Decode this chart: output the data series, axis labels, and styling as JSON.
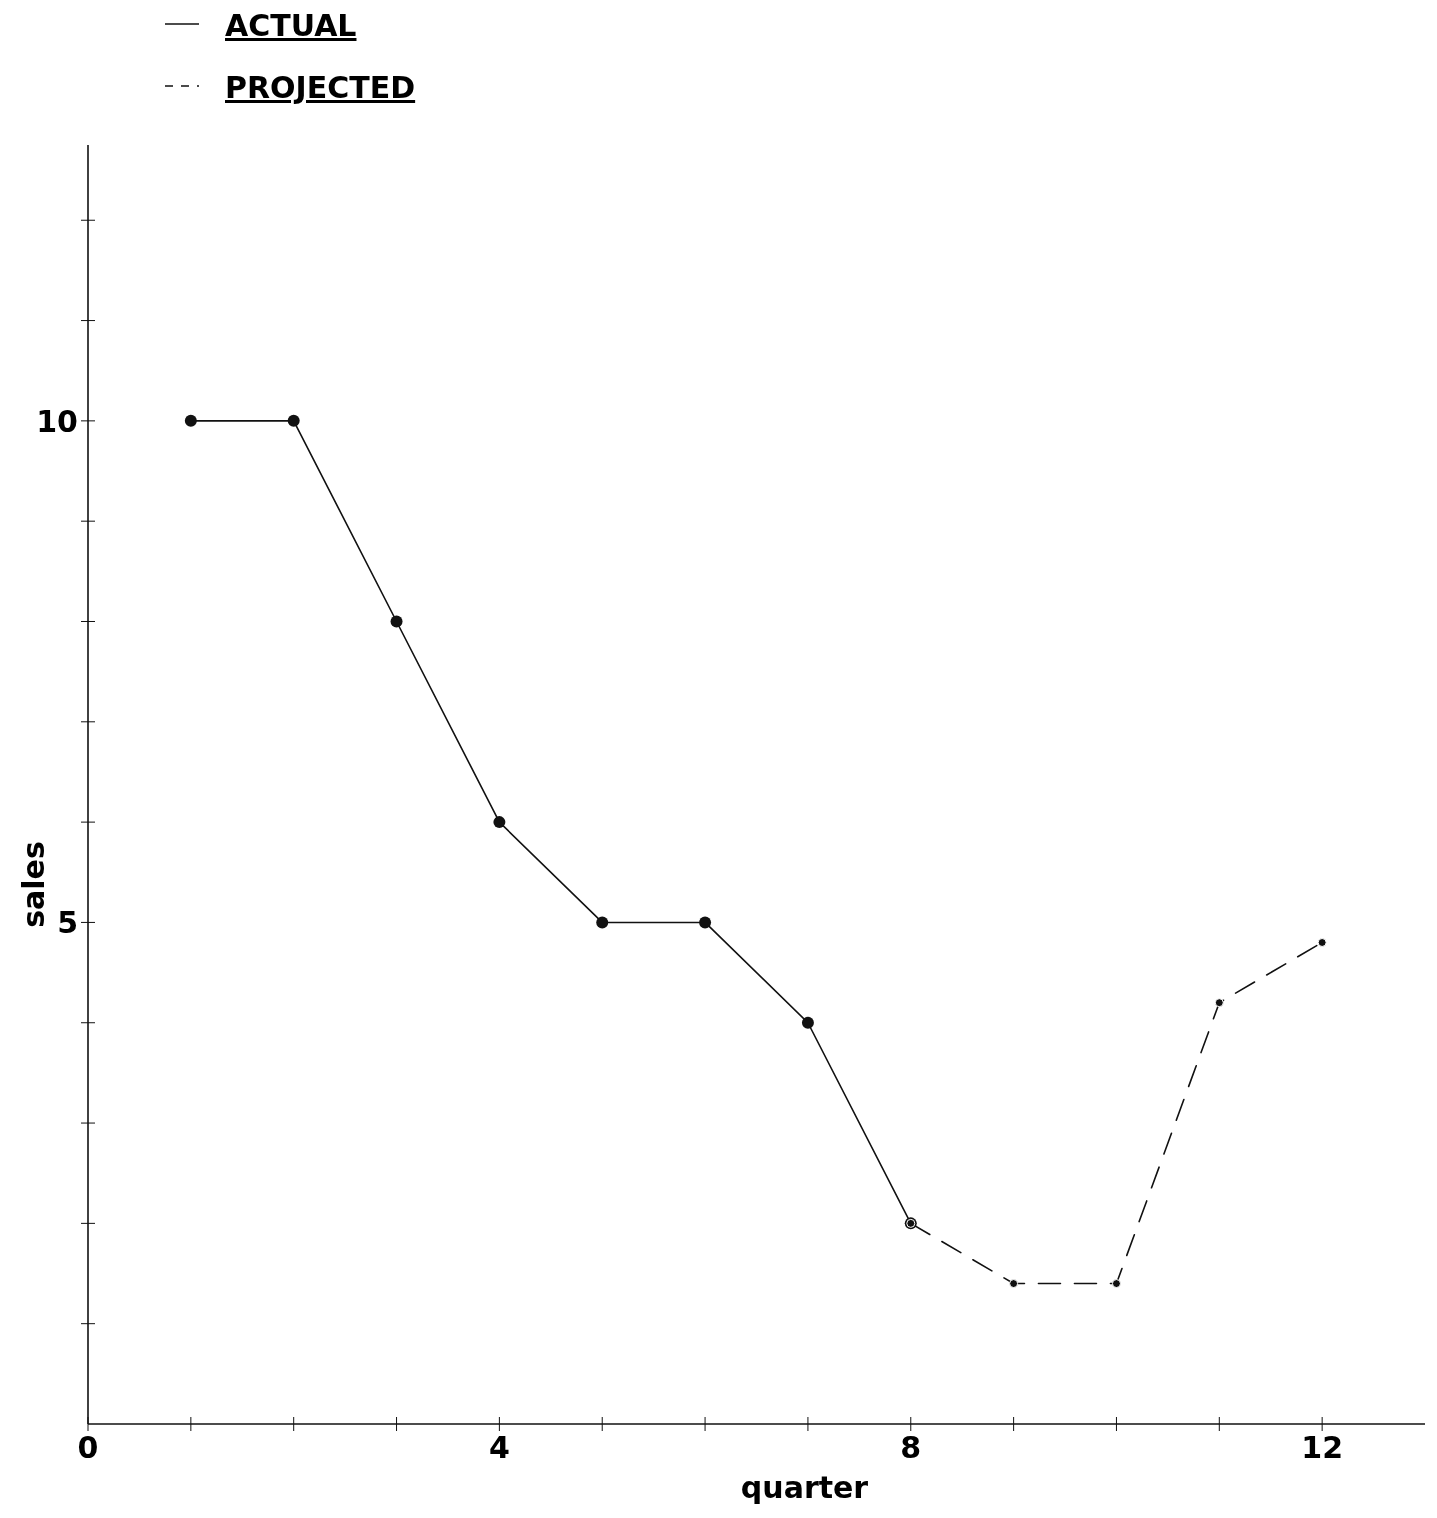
{
  "chart_data": {
    "type": "line",
    "xlabel": "quarter",
    "ylabel": "sales",
    "xlim": [
      0,
      13
    ],
    "ylim": [
      0,
      12.75
    ],
    "xticks": [
      0,
      {
        "value": 1,
        "label": null
      },
      {
        "value": 2,
        "label": null
      },
      {
        "value": 3,
        "label": null
      },
      4,
      {
        "value": 5,
        "label": null
      },
      {
        "value": 6,
        "label": null
      },
      {
        "value": 7,
        "label": null
      },
      8,
      {
        "value": 9,
        "label": null
      },
      {
        "value": 10,
        "label": null
      },
      {
        "value": 11,
        "label": null
      },
      12
    ],
    "yticks": [
      {
        "value": 1,
        "label": null
      },
      {
        "value": 2,
        "label": null
      },
      {
        "value": 3,
        "label": null
      },
      {
        "value": 4,
        "label": null
      },
      5,
      {
        "value": 6,
        "label": null
      },
      {
        "value": 7,
        "label": null
      },
      {
        "value": 8,
        "label": null
      },
      {
        "value": 9,
        "label": null
      },
      10,
      {
        "value": 11,
        "label": null
      },
      {
        "value": 12,
        "label": null
      }
    ],
    "series": [
      {
        "name": "ACTUAL",
        "color": "#111111",
        "line_style": "solid",
        "x": [
          1,
          2,
          3,
          4,
          5,
          6,
          7,
          8
        ],
        "values": [
          10,
          10,
          8,
          6,
          5,
          5,
          4,
          2
        ]
      },
      {
        "name": "PROJECTED",
        "color": "#111111",
        "line_style": "dashed",
        "x": [
          8,
          9,
          10,
          11,
          12
        ],
        "values": [
          2,
          1.4,
          1.4,
          4.2,
          4.8
        ]
      }
    ],
    "marker": "circle",
    "grid": false,
    "legend": "top left"
  }
}
